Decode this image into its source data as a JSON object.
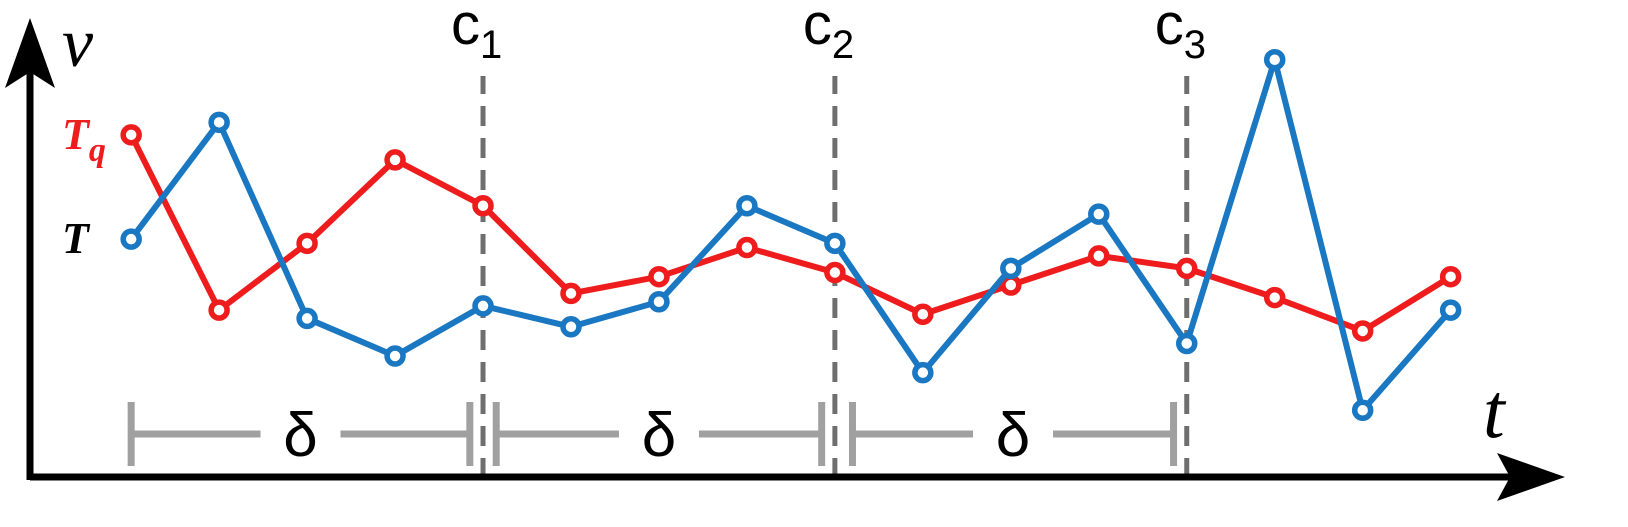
{
  "colors": {
    "T_q": "#ee1c1c",
    "T": "#1a77c2",
    "axis": "#000000",
    "interval": "#a0a0a0",
    "change": "#6e6e6e"
  },
  "chart_data": {
    "type": "line",
    "xlabel": "t",
    "ylabel": "v",
    "grid": false,
    "legend": "left, series labels placed beside start points",
    "x": [
      1,
      2,
      3,
      4,
      5,
      6,
      7,
      8,
      9,
      10,
      11,
      12,
      13,
      14,
      15,
      16
    ],
    "series": [
      {
        "name": "T",
        "subscript": "q",
        "key": "Tq",
        "values": [
          8.2,
          4.0,
          5.6,
          7.6,
          6.5,
          4.4,
          4.8,
          5.5,
          4.9,
          3.9,
          4.6,
          5.3,
          5.0,
          4.3,
          3.5,
          4.8
        ]
      },
      {
        "name": "T",
        "subscript": "",
        "key": "T",
        "values": [
          5.7,
          8.5,
          3.8,
          2.9,
          4.1,
          3.6,
          4.2,
          6.5,
          5.6,
          2.5,
          5.0,
          6.3,
          3.2,
          10.0,
          1.6,
          4.0
        ]
      }
    ],
    "ylim": [
      0,
      11
    ],
    "xlim": [
      -0.15,
      17.3
    ],
    "change_points": [
      {
        "name": "c",
        "index": "1",
        "x": 5
      },
      {
        "name": "c",
        "index": "2",
        "x": 9
      },
      {
        "name": "c",
        "index": "3",
        "x": 13
      }
    ],
    "intervals": [
      {
        "label": "δ",
        "from": 1,
        "to": 4.85
      },
      {
        "label": "δ",
        "from": 5.15,
        "to": 8.85
      },
      {
        "label": "δ",
        "from": 9.2,
        "to": 12.85
      }
    ]
  }
}
